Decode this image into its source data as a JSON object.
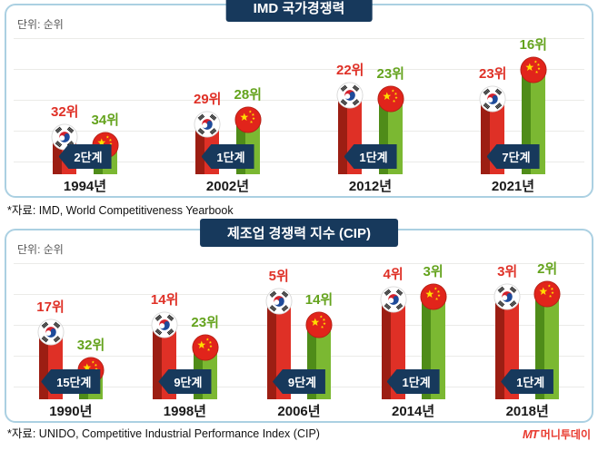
{
  "colors": {
    "navy": "#17395c",
    "panel_border": "#abd0e2",
    "korea_red": "#df3026",
    "korea_red_dark": "#9c1e13",
    "china_green": "#7bb832",
    "china_green_dark": "#4f8c19",
    "china_label_green": "#64a31d",
    "grid": "#ebebe8",
    "watermark_red": "#e8392e"
  },
  "chart_data": [
    {
      "type": "bar",
      "title": "IMD 국가경쟁력",
      "unit_label": "단위: 순위",
      "value_suffix": "위",
      "categories": [
        "1994년",
        "2002년",
        "2012년",
        "2021년"
      ],
      "series": [
        {
          "name": "korea",
          "flag_icon": "korea-flag-icon",
          "values": [
            32,
            29,
            22,
            23
          ],
          "bar_color": "#df3026",
          "bar_dark": "#9c1e13",
          "label_color": "#df3026"
        },
        {
          "name": "china",
          "flag_icon": "china-flag-icon",
          "values": [
            34,
            28,
            23,
            16
          ],
          "bar_color": "#7bb832",
          "bar_dark": "#4f8c19",
          "label_color": "#64a31d"
        }
      ],
      "gap_labels": [
        "2단계",
        "1단계",
        "1단계",
        "7단계"
      ],
      "source": "*자료: IMD, World Competitiveness Yearbook",
      "grid": true,
      "legend": "none",
      "note": "values are ranks (lower is better); bar height is inversely proportional to rank"
    },
    {
      "type": "bar",
      "title": "제조업 경쟁력 지수 (CIP)",
      "unit_label": "단위: 순위",
      "value_suffix": "위",
      "categories": [
        "1990년",
        "1998년",
        "2006년",
        "2014년",
        "2018년"
      ],
      "series": [
        {
          "name": "korea",
          "flag_icon": "korea-flag-icon",
          "values": [
            17,
            14,
            5,
            4,
            3
          ],
          "bar_color": "#df3026",
          "bar_dark": "#9c1e13",
          "label_color": "#df3026"
        },
        {
          "name": "china",
          "flag_icon": "china-flag-icon",
          "values": [
            32,
            23,
            14,
            3,
            2
          ],
          "bar_color": "#7bb832",
          "bar_dark": "#4f8c19",
          "label_color": "#64a31d"
        }
      ],
      "gap_labels": [
        "15단계",
        "9단계",
        "9단계",
        "1단계",
        "1단계"
      ],
      "source": "*자료: UNIDO, Competitive Industrial Performance Index (CIP)",
      "grid": true,
      "legend": "none",
      "note": "values are ranks (lower is better); bar height is inversely proportional to rank"
    }
  ],
  "watermark": {
    "logo": "MT",
    "name": "머니투데이"
  }
}
